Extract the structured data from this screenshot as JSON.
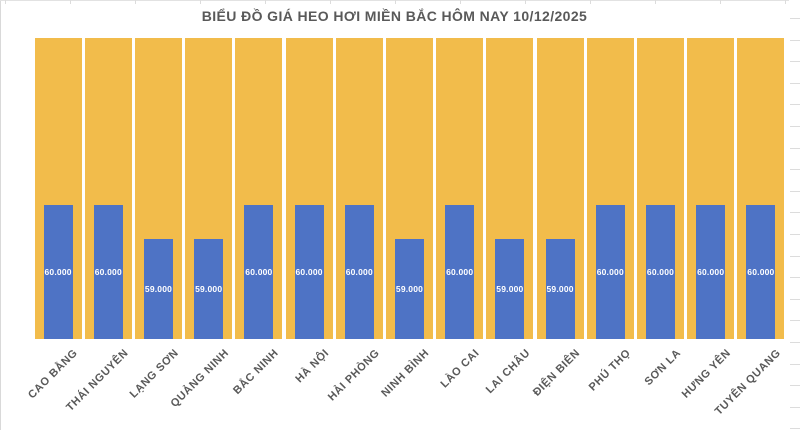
{
  "chart_data": {
    "type": "bar",
    "title": "BIỂU ĐỒ GIÁ HEO HƠI MIỀN BẮC HÔM NAY 10/12/2025",
    "categories": [
      "CAO BẰNG",
      "THÁI NGUYÊN",
      "LẠNG SƠN",
      "QUẢNG NINH",
      "BẮC NINH",
      "HÀ NỘI",
      "HẢI PHÒNG",
      "NINH BÌNH",
      "LÀO CAI",
      "LAI CHÂU",
      "ĐIỆN BIÊN",
      "PHÚ THỌ",
      "SƠN LA",
      "HƯNG YÊN",
      "TUYÊN QUANG"
    ],
    "values": [
      60000,
      60000,
      59000,
      59000,
      60000,
      60000,
      60000,
      59000,
      60000,
      59000,
      59000,
      60000,
      60000,
      60000,
      60000
    ],
    "value_labels": [
      "60.000",
      "60.000",
      "59.000",
      "59.000",
      "60.000",
      "60.000",
      "60.000",
      "59.000",
      "60.000",
      "59.000",
      "59.000",
      "60.000",
      "60.000",
      "60.000",
      "60.000"
    ],
    "xlabel": "",
    "ylabel": "",
    "ylim": [
      56000,
      65000
    ],
    "legend": "none",
    "grid": false,
    "layout": {
      "bar_color": "#4E73C5",
      "background_bar_color": "#F2BC4B",
      "value_label_color": "#FFFFFF",
      "category_label_color": "#595959",
      "title_color": "#595959",
      "category_label_rotation_deg": 45,
      "background_bars_full_height": true
    }
  },
  "spreadsheet": {
    "gridline_color": "#DCDCDC"
  }
}
